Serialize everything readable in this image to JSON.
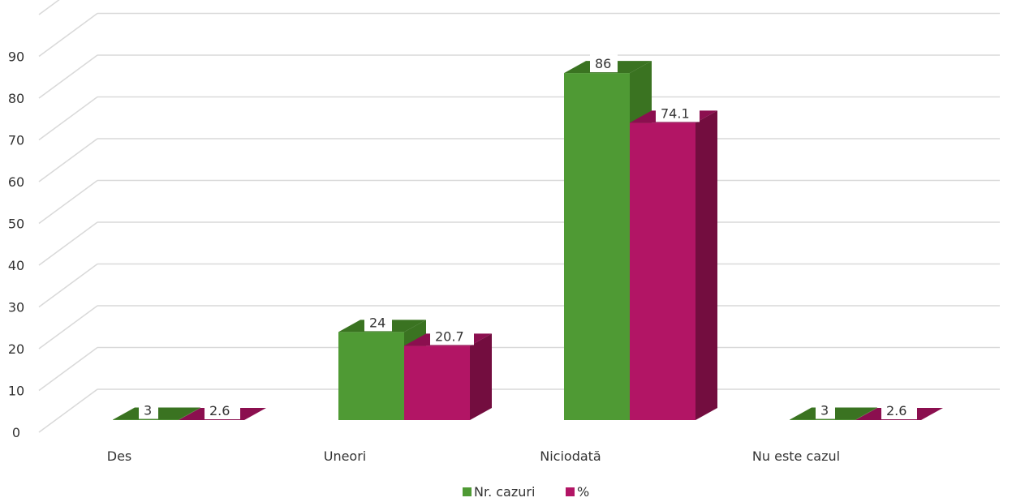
{
  "chart_data": {
    "type": "bar",
    "title": "",
    "xlabel": "",
    "ylabel": "",
    "categories": [
      "Des",
      "Uneori",
      "Niciodată",
      "Nu este cazul"
    ],
    "series": [
      {
        "name": "Nr. cazuri",
        "values": [
          3,
          24,
          86,
          3
        ],
        "labels": [
          "3",
          "24",
          "86",
          "3"
        ],
        "color": "#4f9a34",
        "top_color": "#3a7321",
        "side_color": "#3a7321"
      },
      {
        "name": "%",
        "values": [
          2.6,
          20.7,
          74.1,
          2.6
        ],
        "labels": [
          "2.6",
          "20.7",
          "74.1",
          "2.6"
        ],
        "color": "#b21565",
        "top_color": "#8b0f4f",
        "side_color": "#730d3f"
      }
    ],
    "ylim": [
      0,
      100
    ],
    "yticks": [
      "0",
      "10",
      "20",
      "30",
      "40",
      "50",
      "60",
      "70",
      "80",
      "90"
    ],
    "grid": true,
    "legend_position": "bottom",
    "three_d": true
  }
}
